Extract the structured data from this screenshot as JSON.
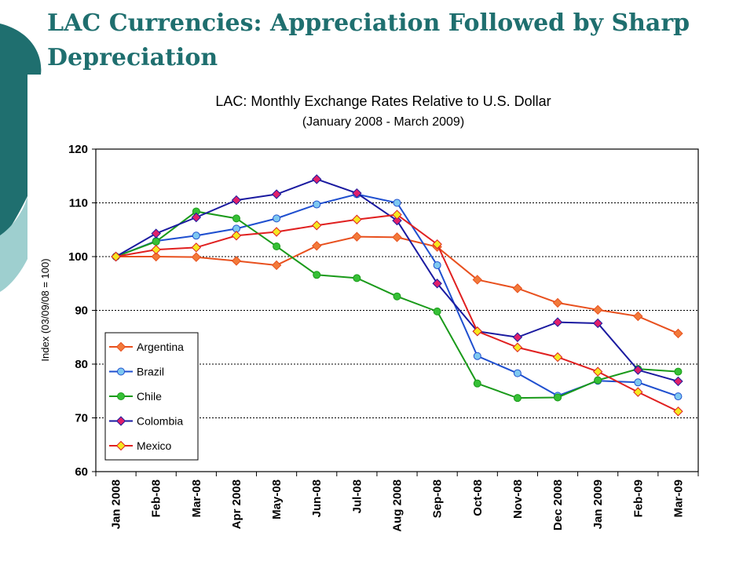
{
  "slide": {
    "title": "LAC Currencies: Appreciation Followed by Sharp Depreciation"
  },
  "colors": {
    "accent_dark": "#1f6f6f",
    "accent_light": "#9ecfcf",
    "title_text": "#1f6f6f"
  },
  "chart_data": {
    "type": "line",
    "title": "LAC: Monthly Exchange Rates Relative to U.S. Dollar",
    "subtitle": "(January 2008 - March 2009)",
    "ylabel": "Index (03/09/08 = 100)",
    "xlabel": "",
    "ylim": [
      60,
      120
    ],
    "yticks": [
      60,
      70,
      80,
      90,
      100,
      110,
      120
    ],
    "grid": "horizontal dashed",
    "legend_position": "bottom-left",
    "categories": [
      "Jan 2008",
      "Feb-08",
      "Mar-08",
      "Apr 2008",
      "May-08",
      "Jun-08",
      "Jul-08",
      "Aug 2008",
      "Sep-08",
      "Oct-08",
      "Nov-08",
      "Dec 2008",
      "Jan 2009",
      "Feb-09",
      "Mar-09"
    ],
    "series": [
      {
        "name": "Argentina",
        "color": "#e8501e",
        "marker_fill": "#f27a3a",
        "marker": "diamond",
        "values": [
          100,
          100,
          99.9,
          99.2,
          98.4,
          102,
          103.7,
          103.6,
          101.8,
          95.7,
          94.1,
          91.4,
          90.1,
          88.9,
          85.7
        ]
      },
      {
        "name": "Brazil",
        "color": "#1f4fcf",
        "marker_fill": "#7ec8f0",
        "marker": "circle",
        "values": [
          100,
          102.9,
          103.9,
          105.2,
          107.1,
          109.7,
          111.6,
          110.0,
          98.4,
          81.5,
          78.3,
          74.1,
          76.9,
          76.6,
          74.0
        ]
      },
      {
        "name": "Chile",
        "color": "#1a9a1a",
        "marker_fill": "#36c036",
        "marker": "circle",
        "values": [
          100,
          102.8,
          108.4,
          107.1,
          101.9,
          96.6,
          96.0,
          92.6,
          89.8,
          76.4,
          73.7,
          73.8,
          77.0,
          79.1,
          78.6
        ]
      },
      {
        "name": "Colombia",
        "color": "#1a1aa0",
        "marker_fill": "#e0206a",
        "marker": "diamond",
        "values": [
          100,
          104.3,
          107.3,
          110.5,
          111.6,
          114.4,
          111.8,
          106.7,
          95.0,
          86.1,
          85.0,
          87.8,
          87.6,
          78.9,
          76.8
        ]
      },
      {
        "name": "Mexico",
        "color": "#e02020",
        "marker_fill": "#f5e820",
        "marker": "diamond",
        "values": [
          100,
          101.3,
          101.7,
          103.9,
          104.6,
          105.8,
          106.9,
          107.8,
          102.3,
          86.1,
          83.1,
          81.3,
          78.6,
          74.8,
          71.2
        ]
      }
    ]
  }
}
